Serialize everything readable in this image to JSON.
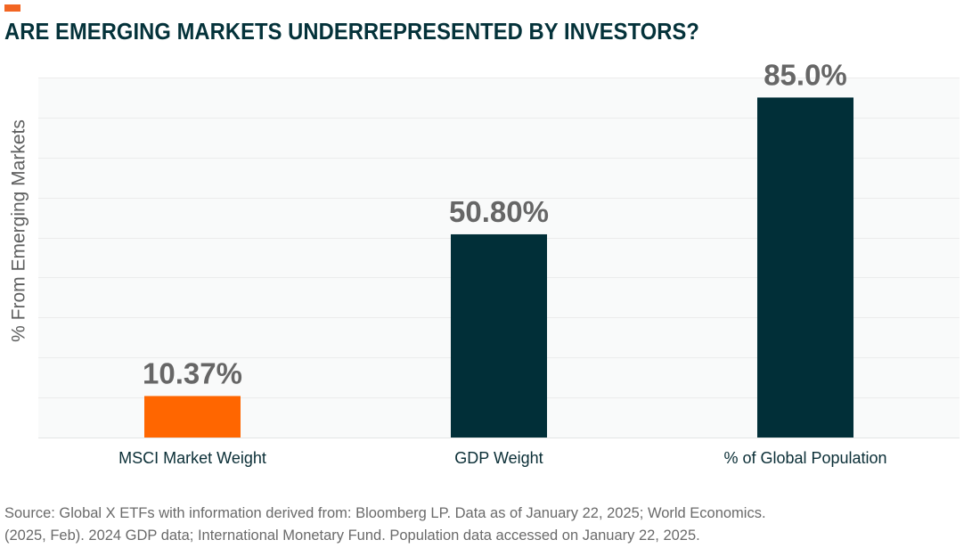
{
  "header": {
    "title": "ARE EMERGING MARKETS UNDERREPRESENTED BY INVESTORS?",
    "accent_color": "#f26522",
    "title_color": "#04323a"
  },
  "chart_data": {
    "type": "bar",
    "title": "ARE EMERGING MARKETS UNDERREPRESENTED BY INVESTORS?",
    "xlabel": "",
    "ylabel": "% From Emerging Markets",
    "categories": [
      "MSCI Market Weight",
      "GDP Weight",
      "% of Global Population"
    ],
    "values": [
      10.37,
      50.8,
      85.0
    ],
    "data_labels": [
      "10.37%",
      "50.80%",
      "85.0%"
    ],
    "bar_colors": [
      "#ff6600",
      "#012f38",
      "#012f38"
    ],
    "ylim": [
      0,
      90
    ],
    "grid": true,
    "grid_step": 10,
    "y_tick_labels_shown": false,
    "legend": "none"
  },
  "footer": {
    "source_line1": "Source: Global X ETFs with information derived from: Bloomberg LP. Data as of January 22, 2025; World Economics.",
    "source_line2": "(2025, Feb). 2024 GDP data; International Monetary Fund. Population data accessed on January 22, 2025."
  }
}
